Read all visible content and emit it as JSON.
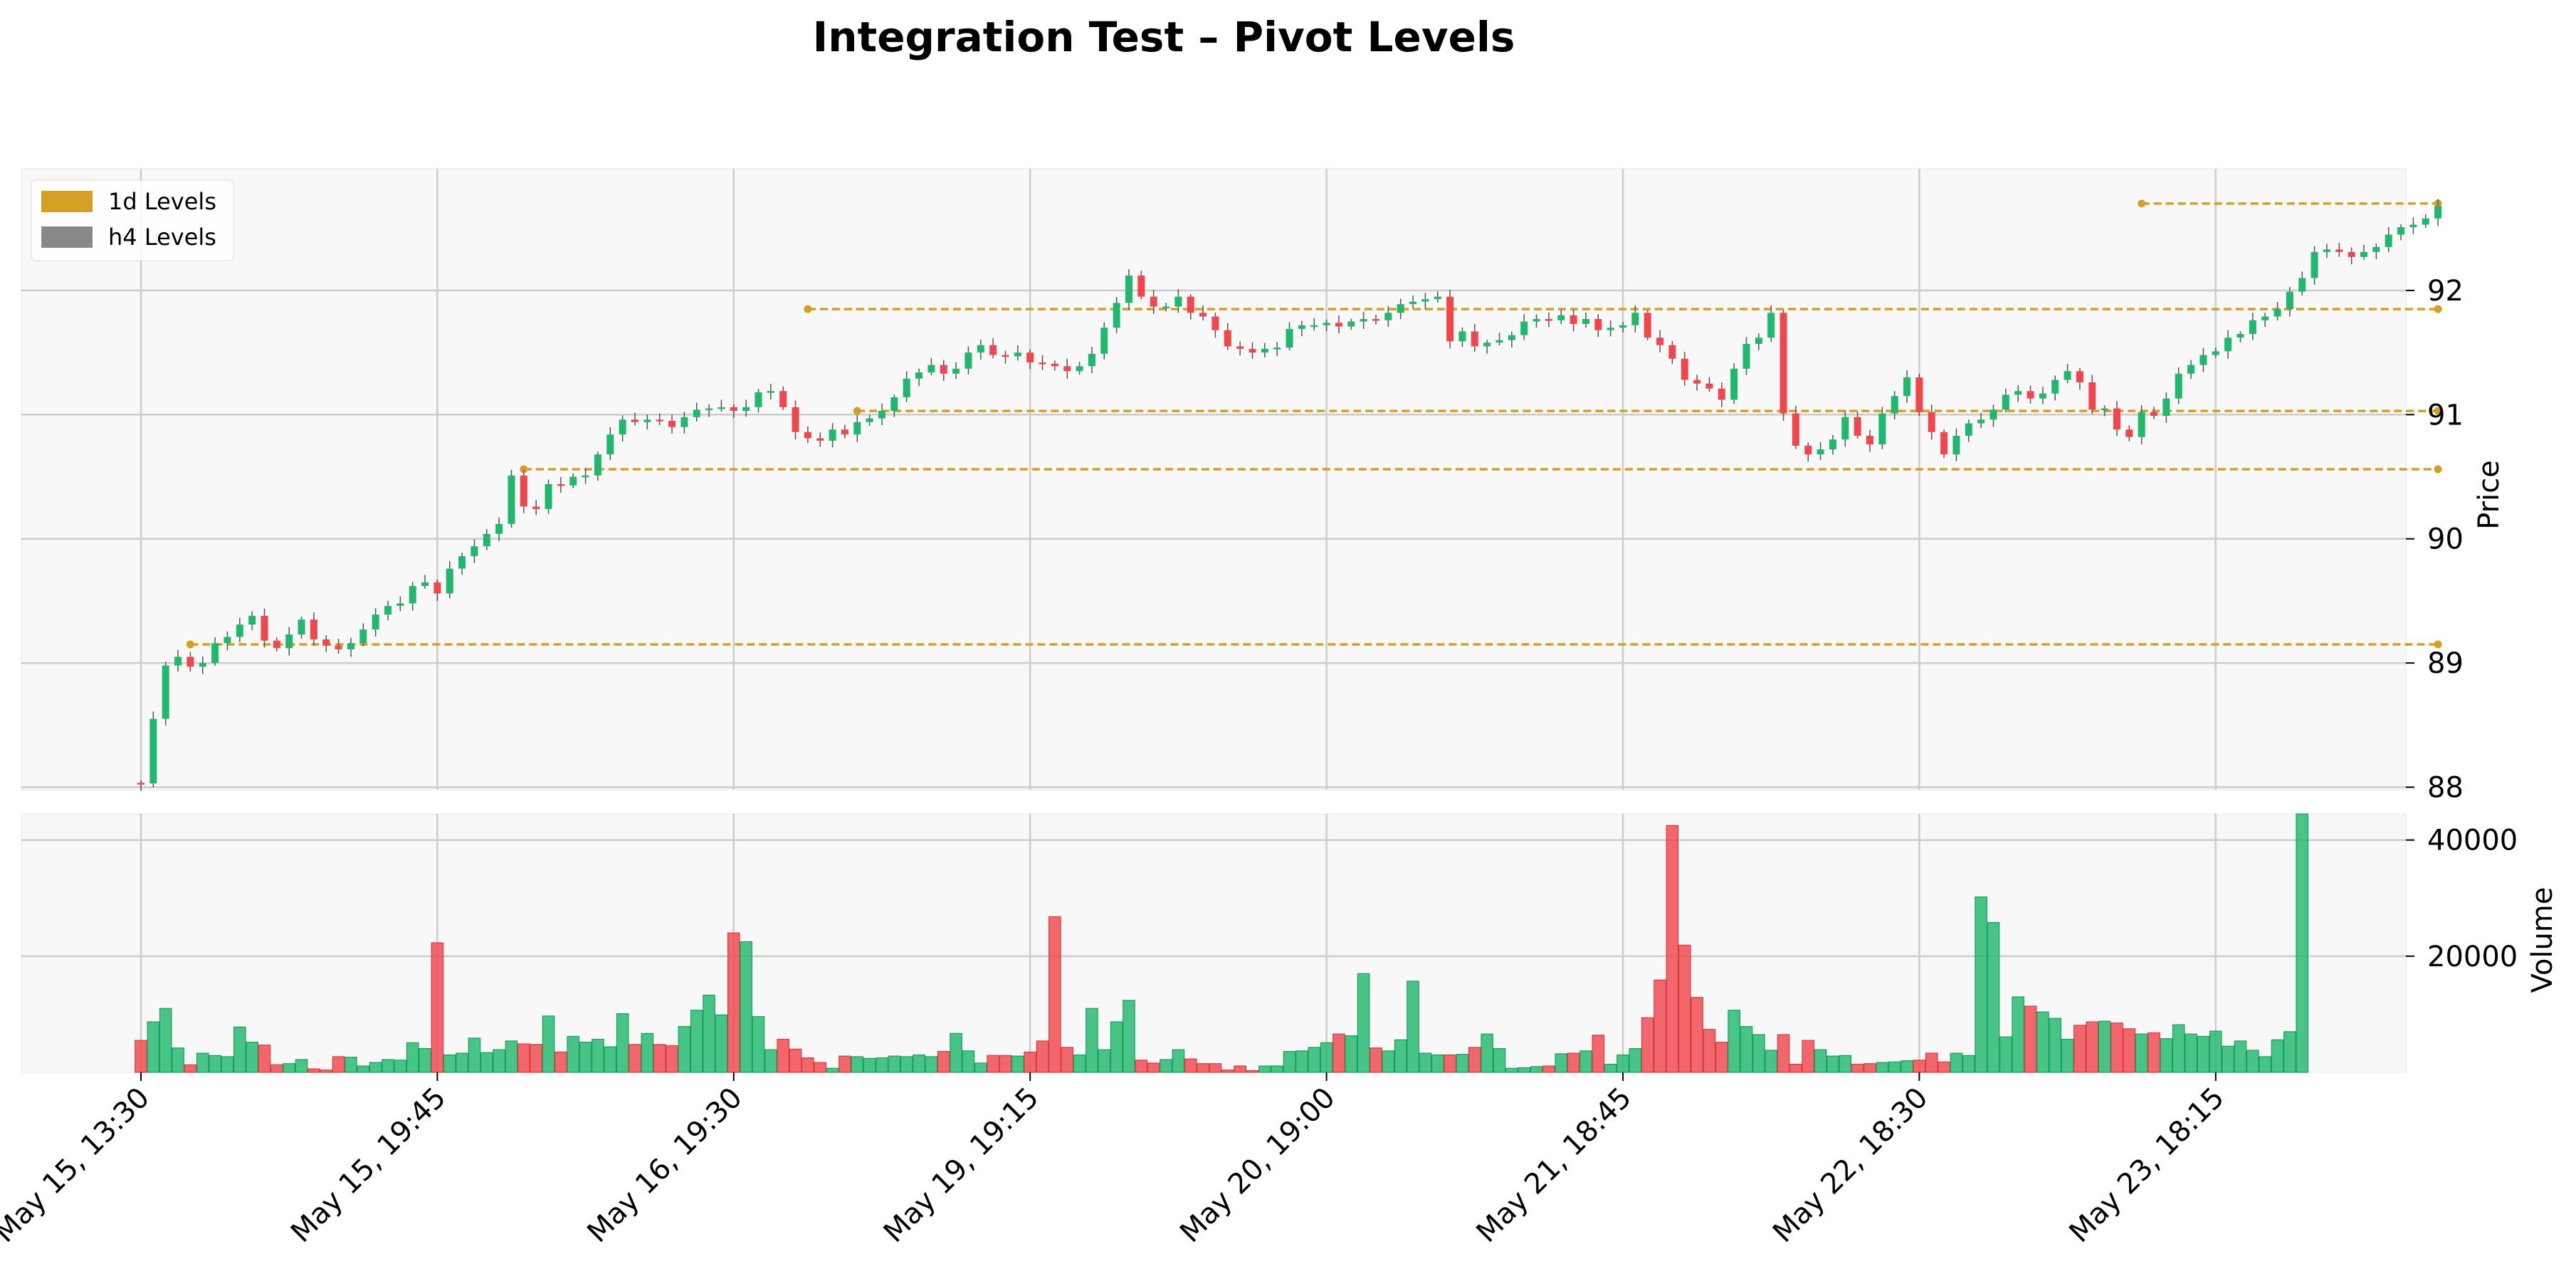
{
  "chart_data": {
    "type": "candlestick",
    "title": "Integration Test – Pivot Levels",
    "colors": {
      "up": "#20b86c",
      "down": "#f0474c",
      "level_1d": "#d4a024",
      "level_h4": "#888888",
      "grid": "#cccccc",
      "panel_bg": "#f8f8f8"
    },
    "legend": {
      "placement": "top-left",
      "items": [
        {
          "label": "1d Levels",
          "color": "#d4a024"
        },
        {
          "label": "h4 Levels",
          "color": "#888888"
        }
      ]
    },
    "x_tick_labels": [
      "May 15, 13:30",
      "May 15, 19:45",
      "May 16, 19:30",
      "May 19, 19:15",
      "May 20, 19:00",
      "May 21, 18:45",
      "May 22, 18:30",
      "May 23, 18:15"
    ],
    "bars_per_tick": 24,
    "price_panel": {
      "ylabel": "Price",
      "ylim": [
        87.98,
        92.98
      ],
      "yticks": [
        88,
        89,
        90,
        91,
        92
      ],
      "closes": [
        88.03,
        88.55,
        88.98,
        89.05,
        88.97,
        89.0,
        89.16,
        89.21,
        89.31,
        89.38,
        89.18,
        89.12,
        89.23,
        89.35,
        89.19,
        89.14,
        89.11,
        89.16,
        89.27,
        89.39,
        89.46,
        89.48,
        89.62,
        89.65,
        89.56,
        89.76,
        89.86,
        89.94,
        90.04,
        90.12,
        90.51,
        90.26,
        90.24,
        90.44,
        90.43,
        90.5,
        90.51,
        90.68,
        90.84,
        90.96,
        90.94,
        90.96,
        90.95,
        90.9,
        90.98,
        91.04,
        91.05,
        91.06,
        91.03,
        91.06,
        91.18,
        91.19,
        91.06,
        90.86,
        90.81,
        90.79,
        90.88,
        90.84,
        90.94,
        90.97,
        91.03,
        91.14,
        91.29,
        91.34,
        91.4,
        91.33,
        91.37,
        91.5,
        91.56,
        91.48,
        91.47,
        91.5,
        91.42,
        91.41,
        91.39,
        91.35,
        91.39,
        91.49,
        91.7,
        91.9,
        92.12,
        91.95,
        91.87,
        91.87,
        91.95,
        91.82,
        91.79,
        91.68,
        91.55,
        91.53,
        91.5,
        91.53,
        91.54,
        91.69,
        91.72,
        91.72,
        91.74,
        91.71,
        91.75,
        91.77,
        91.76,
        91.82,
        91.89,
        91.91,
        91.93,
        91.95,
        91.59,
        91.67,
        91.55,
        91.58,
        91.6,
        91.64,
        91.75,
        91.77,
        91.76,
        91.8,
        91.73,
        91.77,
        91.68,
        91.7,
        91.72,
        91.82,
        91.62,
        91.56,
        91.45,
        91.28,
        91.25,
        91.21,
        91.12,
        91.37,
        91.57,
        91.62,
        91.82,
        91.01,
        90.75,
        90.68,
        90.72,
        90.8,
        90.98,
        90.83,
        90.76,
        91.01,
        91.15,
        91.3,
        91.02,
        90.86,
        90.68,
        90.83,
        90.93,
        90.96,
        91.04,
        91.16,
        91.19,
        91.13,
        91.17,
        91.28,
        91.35,
        91.26,
        91.04,
        91.05,
        90.88,
        90.82,
        91.02,
        90.99,
        91.13,
        91.33,
        91.4,
        91.48,
        91.51,
        91.62,
        91.65,
        91.76,
        91.79,
        91.85,
        91.99,
        92.1,
        92.31,
        92.33,
        92.31,
        92.27,
        92.31,
        92.35,
        92.45,
        92.51,
        92.53,
        92.58,
        92.68
      ],
      "levels": [
        {
          "timeframe": "1d",
          "price": 92.7,
          "start_bar": 162
        },
        {
          "timeframe": "1d",
          "price": 91.85,
          "start_bar": 54
        },
        {
          "timeframe": "1d",
          "price": 91.03,
          "start_bar": 58
        },
        {
          "timeframe": "1d",
          "price": 90.56,
          "start_bar": 31
        },
        {
          "timeframe": "1d",
          "price": 89.15,
          "start_bar": 4
        }
      ]
    },
    "volume_panel": {
      "ylabel": "Volume",
      "ylim": [
        0,
        44500
      ],
      "yticks": [
        20000,
        40000
      ],
      "values": [
        5500,
        8700,
        11000,
        4200,
        1300,
        3300,
        2900,
        2700,
        7800,
        5200,
        4700,
        1300,
        1500,
        2200,
        600,
        400,
        2700,
        2600,
        1100,
        1700,
        2200,
        2100,
        5100,
        4100,
        22300,
        3000,
        3300,
        5900,
        3400,
        3900,
        5400,
        4900,
        4800,
        9700,
        3500,
        6200,
        5200,
        5700,
        4400,
        10100,
        4800,
        6700,
        4800,
        4600,
        7900,
        10700,
        13300,
        9900,
        24000,
        22500,
        9600,
        3900,
        5700,
        4000,
        2500,
        1700,
        700,
        2800,
        2700,
        2400,
        2500,
        2800,
        2700,
        3000,
        2700,
        3600,
        6700,
        3700,
        1600,
        2900,
        2900,
        2800,
        3500,
        5400,
        26800,
        4300,
        3000,
        11000,
        3900,
        8700,
        12400,
        2100,
        1600,
        2200,
        3900,
        2300,
        1500,
        1500,
        400,
        1100,
        300,
        1100,
        1100,
        3600,
        3700,
        4300,
        5100,
        6600,
        6300,
        17000,
        4200,
        3700,
        5600,
        15700,
        3300,
        3000,
        3000,
        3100,
        4300,
        6600,
        4100,
        700,
        800,
        1000,
        1100,
        3200,
        3300,
        3700,
        6400,
        1400,
        3000,
        4100,
        9400,
        15900,
        42500,
        21900,
        12900,
        7400,
        5200,
        10700,
        7900,
        6500,
        3800,
        6500,
        1400,
        5500,
        3900,
        2800,
        2900,
        1400,
        1500,
        1700,
        1800,
        2000,
        2100,
        3300,
        1800,
        3300,
        2900,
        30200,
        25800,
        6100,
        13000,
        11400,
        10400,
        9300,
        5700,
        8100,
        8700,
        8800,
        8500,
        7500,
        6600,
        6800,
        5800,
        8200,
        6600,
        6200,
        7100,
        4500,
        5400,
        3800,
        2700,
        5600,
        7000,
        44500
      ],
      "note": "volume bars colored by candle direction"
    }
  }
}
